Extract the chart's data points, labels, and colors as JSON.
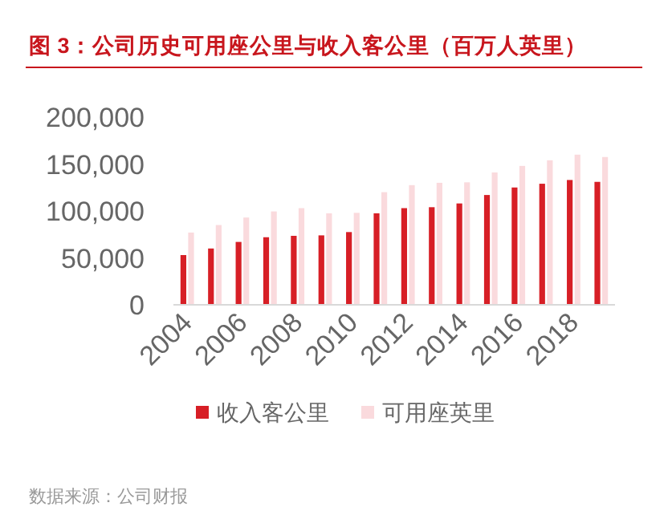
{
  "chart_data": {
    "type": "bar",
    "title": "图 3：公司历史可用座公里与收入客公里（百万人英里）",
    "categories": [
      "2004",
      null,
      "2006",
      null,
      "2008",
      null,
      "2010",
      null,
      "2012",
      null,
      "2014",
      null,
      "2016",
      null,
      "2018",
      null
    ],
    "series": [
      {
        "name": "收入客公里",
        "color": "#d71f26",
        "values": [
          53000,
          60000,
          67000,
          72000,
          73500,
          74000,
          77500,
          97500,
          103000,
          104000,
          108000,
          117000,
          125000,
          129000,
          133000,
          131000
        ]
      },
      {
        "name": "可用座英里",
        "color": "#fadadd",
        "values": [
          77000,
          85000,
          93000,
          99500,
          103000,
          97500,
          98000,
          120000,
          127500,
          130000,
          130500,
          141000,
          148000,
          154000,
          160000,
          157500
        ]
      }
    ],
    "ylim": [
      0,
      200000
    ],
    "yticks": [
      {
        "value": 0,
        "label": "0"
      },
      {
        "value": 50000,
        "label": "50,000"
      },
      {
        "value": 100000,
        "label": "100,000"
      },
      {
        "value": 150000,
        "label": "150,000"
      },
      {
        "value": 200000,
        "label": "200,000"
      }
    ],
    "grid": false,
    "legend": "bottom",
    "annotations": [
      "数据来源：公司财报"
    ]
  }
}
